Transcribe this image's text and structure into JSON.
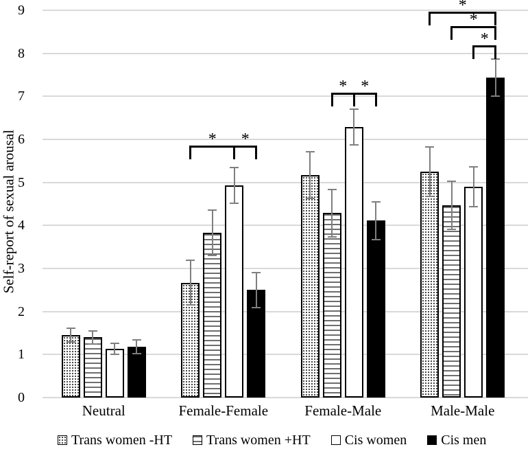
{
  "chart_data": {
    "type": "bar",
    "title": "",
    "xlabel": "",
    "ylabel": "Self-report of sexual arousal",
    "ylim": [
      0,
      9
    ],
    "ytick_step": 1,
    "grid": "horizontal",
    "legend_position": "bottom",
    "categories": [
      "Neutral",
      "Female-Female",
      "Female-Male",
      "Male-Male"
    ],
    "series": [
      {
        "name": "Trans women -HT",
        "pattern": "dots",
        "values": [
          1.45,
          2.67,
          5.17,
          5.25
        ],
        "errors": [
          0.16,
          0.52,
          0.55,
          0.58
        ]
      },
      {
        "name": "Trans women +HT",
        "pattern": "hlines",
        "values": [
          1.4,
          3.83,
          4.29,
          4.47
        ],
        "errors": [
          0.15,
          0.52,
          0.55,
          0.56
        ]
      },
      {
        "name": "Cis women",
        "pattern": "white",
        "values": [
          1.13,
          4.93,
          6.29,
          4.9
        ],
        "errors": [
          0.13,
          0.42,
          0.42,
          0.46
        ]
      },
      {
        "name": "Cis men",
        "pattern": "black",
        "values": [
          1.18,
          2.5,
          4.11,
          7.43
        ],
        "errors": [
          0.16,
          0.41,
          0.44,
          0.43
        ]
      }
    ],
    "significance_brackets": [
      {
        "category": 1,
        "from_series": 0,
        "to_series": 2,
        "y": 5.85,
        "label": "*"
      },
      {
        "category": 1,
        "from_series": 2,
        "to_series": 3,
        "y": 5.85,
        "label": "*"
      },
      {
        "category": 2,
        "from_series": 1,
        "to_series": 2,
        "y": 7.08,
        "label": "*"
      },
      {
        "category": 2,
        "from_series": 2,
        "to_series": 3,
        "y": 7.08,
        "label": "*"
      },
      {
        "category": 3,
        "from_series": 0,
        "to_series": 3,
        "y": 8.97,
        "label": "*"
      },
      {
        "category": 3,
        "from_series": 1,
        "to_series": 3,
        "y": 8.63,
        "label": "*"
      },
      {
        "category": 3,
        "from_series": 2,
        "to_series": 3,
        "y": 8.18,
        "label": "*"
      }
    ],
    "colors": {
      "background": "#ffffff",
      "gridline": "#d9d9d9",
      "error_bar": "#7f7f7f",
      "bar_border": "#000000",
      "text": "#000000"
    }
  }
}
